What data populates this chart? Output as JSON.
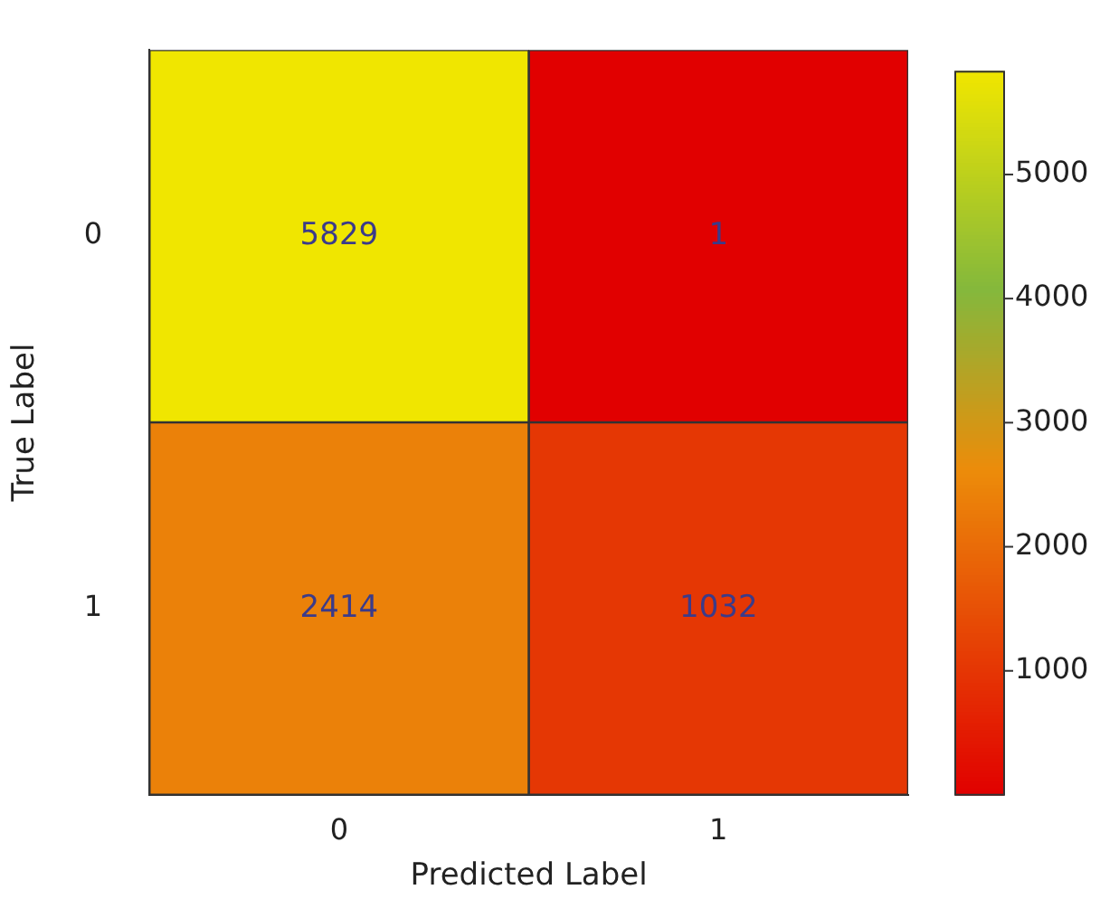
{
  "chart_data": {
    "type": "heatmap",
    "xlabel": "Predicted Label",
    "ylabel": "True Label",
    "categories": [
      "0",
      "1"
    ],
    "y_categories": [
      "0",
      "1"
    ],
    "cells": [
      [
        5829,
        1
      ],
      [
        2414,
        1032
      ]
    ],
    "data_labels": true,
    "clim": [
      1,
      5829
    ],
    "cticks": [
      1000,
      2000,
      3000,
      4000,
      5000
    ]
  }
}
